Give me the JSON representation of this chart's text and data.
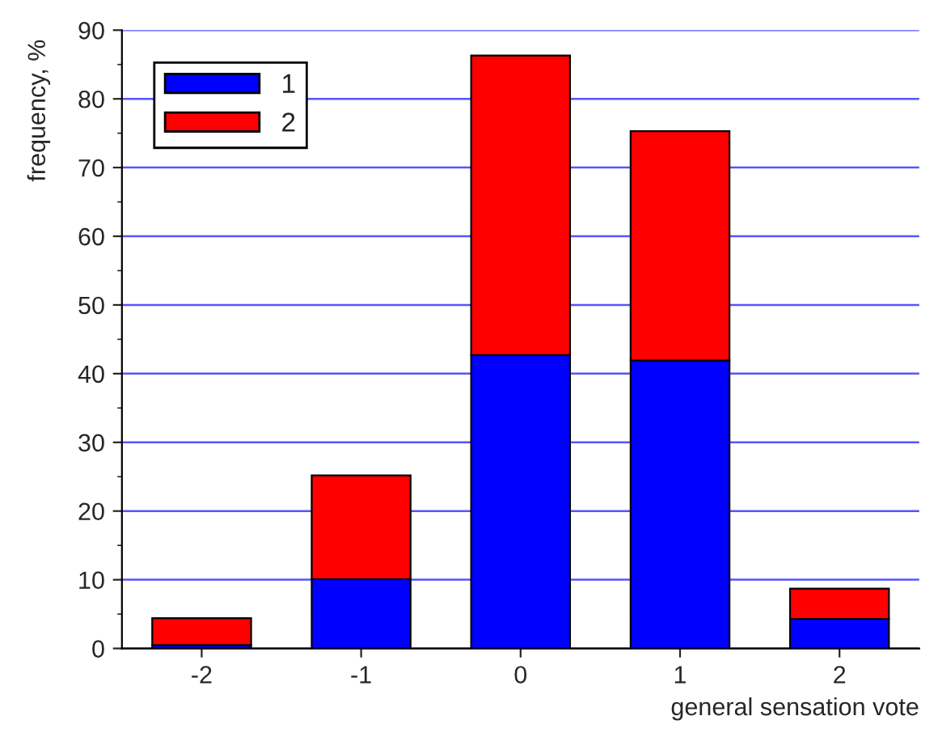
{
  "chart_data": {
    "type": "bar",
    "stacked": true,
    "xlabel": "general sensation vote",
    "ylabel": "frequency, %",
    "categories": [
      "-2",
      "-1",
      "0",
      "1",
      "2"
    ],
    "series": [
      {
        "name": "1",
        "color": "#0000ff",
        "values": [
          0.5,
          10.1,
          42.7,
          41.9,
          4.3
        ]
      },
      {
        "name": "2",
        "color": "#ff0000",
        "values": [
          3.9,
          15.1,
          43.6,
          33.4,
          4.4
        ]
      }
    ],
    "ylim": [
      0,
      90
    ],
    "yticks": [
      0,
      10,
      20,
      30,
      40,
      50,
      60,
      70,
      80,
      90
    ],
    "grid": "y",
    "legend": "top left"
  }
}
